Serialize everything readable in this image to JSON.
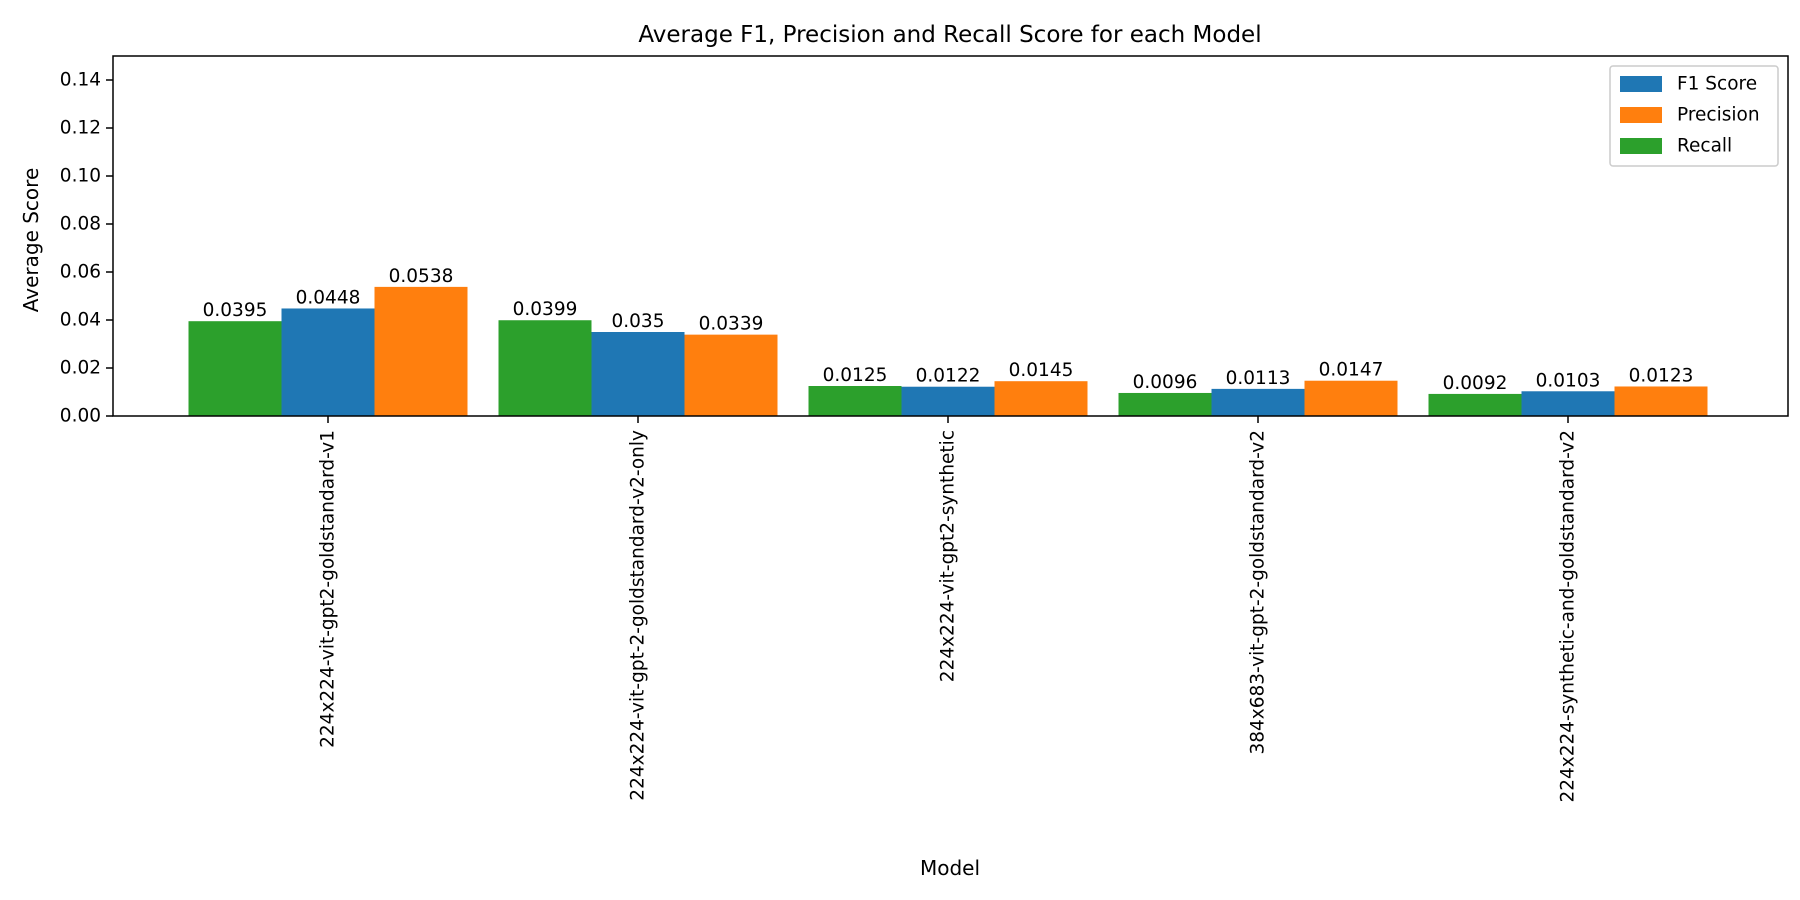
{
  "chart_data": {
    "type": "bar",
    "title": "Average F1, Precision and Recall Score for each Model",
    "xlabel": "Model",
    "ylabel": "Average Score",
    "ylim": [
      0,
      0.15
    ],
    "yticks": [
      "0.00",
      "0.02",
      "0.04",
      "0.06",
      "0.08",
      "0.10",
      "0.12",
      "0.14"
    ],
    "grid": false,
    "legend_position": "top-right",
    "categories": [
      "224x224-vit-gpt2-goldstandard-v1",
      "224x224-vit-gpt-2-goldstandard-v2-only",
      "224x224-vit-gpt2-synthetic",
      "384x683-vit-gpt-2-goldstandard-v2",
      "224x224-synthetic-and-goldstandard-v2"
    ],
    "series": [
      {
        "name": "Recall",
        "color": "#2ca02c",
        "values": [
          0.0395,
          0.0399,
          0.0125,
          0.0096,
          0.0092
        ],
        "labels": [
          "0.0395",
          "0.0399",
          "0.0125",
          "0.0096",
          "0.0092"
        ]
      },
      {
        "name": "F1 Score",
        "color": "#1f77b4",
        "values": [
          0.0448,
          0.035,
          0.0122,
          0.0113,
          0.0103
        ],
        "labels": [
          "0.0448",
          "0.035",
          "0.0122",
          "0.0113",
          "0.0103"
        ]
      },
      {
        "name": "Precision",
        "color": "#ff7f0e",
        "values": [
          0.0538,
          0.0339,
          0.0145,
          0.0147,
          0.0123
        ],
        "labels": [
          "0.0538",
          "0.0339",
          "0.0145",
          "0.0147",
          "0.0123"
        ]
      }
    ],
    "legend_order": [
      "F1 Score",
      "Precision",
      "Recall"
    ]
  }
}
